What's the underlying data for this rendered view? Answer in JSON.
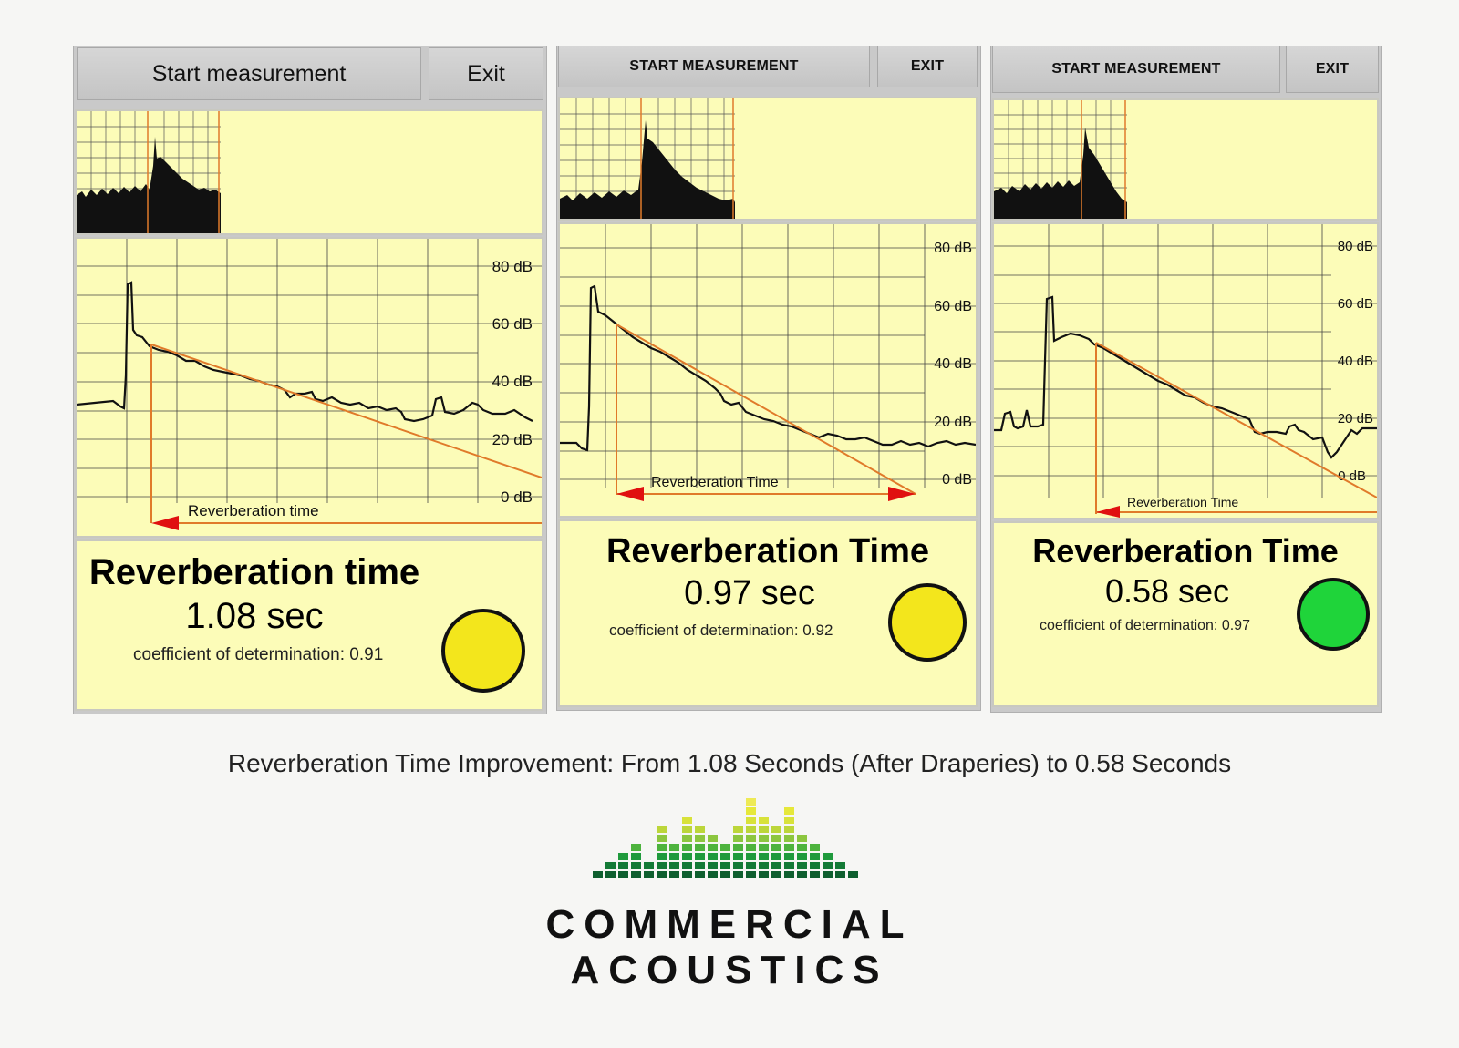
{
  "screens": [
    {
      "start_label": "Start measurement",
      "exit_label": "Exit",
      "axis_labels": [
        "80 dB",
        "60 dB",
        "40 dB",
        "20 dB",
        "0 dB"
      ],
      "arrow_label": "Reverberation time",
      "result_title": "Reverberation time",
      "result_value": "1.08 sec",
      "coef_text": "coefficient of determination:  0.91",
      "indicator_color": "#f3e61c"
    },
    {
      "start_label": "START MEASUREMENT",
      "exit_label": "EXIT",
      "axis_labels": [
        "80 dB",
        "60 dB",
        "40 dB",
        "20 dB",
        "0 dB"
      ],
      "arrow_label": "Reverberation Time",
      "result_title": "Reverberation Time",
      "result_value": "0.97 sec",
      "coef_text": "coefficient of determination:  0.92",
      "indicator_color": "#f3e61c"
    },
    {
      "start_label": "START MEASUREMENT",
      "exit_label": "EXIT",
      "axis_labels": [
        "80 dB",
        "60 dB",
        "40 dB",
        "20 dB",
        "0 dB"
      ],
      "arrow_label": "Reverberation Time",
      "result_title": "Reverberation Time",
      "result_value": "0.58 sec",
      "coef_text": "coefficient of determination:  0.97",
      "indicator_color": "#1fd43a"
    }
  ],
  "caption": "Reverberation Time Improvement: From 1.08 Seconds (After Draperies) to 0.58 Seconds",
  "logo": {
    "line1": "COMMERCIAL",
    "line2": "ACOUSTICS"
  },
  "colors": {
    "screen_bg": "#fcfcb8",
    "grid": "#333333",
    "trace": "#111111",
    "fit_line": "#e07a2a",
    "arrow": "#e01010"
  }
}
